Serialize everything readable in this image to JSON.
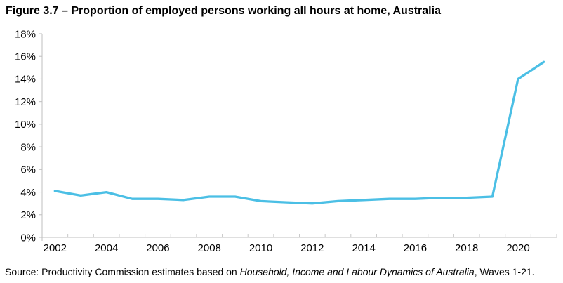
{
  "figure": {
    "title": "Figure 3.7 – Proportion of employed persons working all hours at home, Australia"
  },
  "source": {
    "prefix": "Source: Productivity Commission estimates based on ",
    "italic": "Household, Income and Labour Dynamics of Australia",
    "suffix": ", Waves 1-21."
  },
  "chart_data": {
    "type": "line",
    "title": "Proportion of employed persons working all hours at home, Australia",
    "categories": [
      2002,
      2003,
      2004,
      2005,
      2006,
      2007,
      2008,
      2009,
      2010,
      2011,
      2012,
      2013,
      2014,
      2015,
      2016,
      2017,
      2018,
      2019,
      2020,
      2021
    ],
    "values": [
      4.1,
      3.7,
      4.0,
      3.4,
      3.4,
      3.3,
      3.6,
      3.6,
      3.2,
      3.1,
      3.0,
      3.2,
      3.3,
      3.4,
      3.4,
      3.5,
      3.5,
      3.6,
      14.0,
      15.5
    ],
    "xlabel": "",
    "ylabel": "",
    "ylim": [
      0,
      18
    ],
    "ytick_step": 2,
    "ytick_suffix": "%",
    "xtick_labels": [
      "2002",
      "2004",
      "2006",
      "2008",
      "2010",
      "2012",
      "2014",
      "2016",
      "2018",
      "2020"
    ],
    "grid": false,
    "legend": "none",
    "colors": {
      "line": "#4BBFE5",
      "axis": "#BFBFBF",
      "minor_tick": "#C9C9C9",
      "text": "#000000"
    }
  }
}
